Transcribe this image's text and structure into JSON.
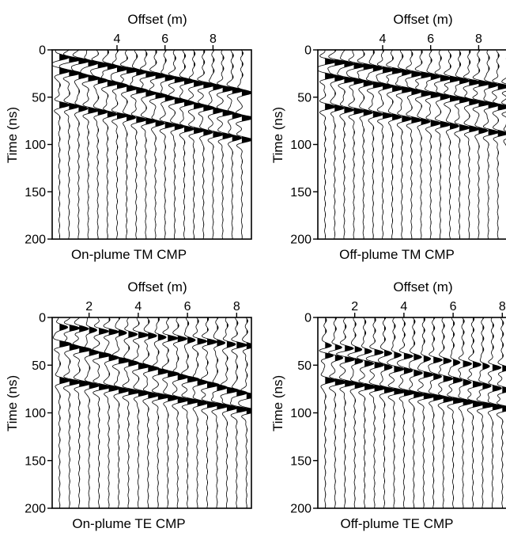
{
  "chart_data": [
    {
      "type": "wiggle-trace",
      "title": "On-plume TM CMP",
      "xlabel": "Offset (m)",
      "ylabel": "Time (ns)",
      "xticks": [
        4,
        6,
        8
      ],
      "xticklabels": [
        "4",
        "6",
        "8"
      ],
      "yticks": [
        0,
        50,
        100,
        150,
        200
      ],
      "yticklabels": [
        "0",
        "50",
        "100",
        "150",
        "200"
      ],
      "xlim": [
        1.3,
        9.6
      ],
      "ylim": [
        0,
        200
      ],
      "trace_offsets_start": 1.6,
      "trace_offsets_step": 0.4,
      "trace_count": 20,
      "events": [
        {
          "t0": 8,
          "t1": 45,
          "amp": 1.0
        },
        {
          "t0": 22,
          "t1": 72,
          "amp": 1.0
        },
        {
          "t0": 58,
          "t1": 95,
          "amp": 0.9
        }
      ]
    },
    {
      "type": "wiggle-trace",
      "title": "Off-plume TM CMP",
      "xlabel": "Offset (m)",
      "ylabel": "Time (ns)",
      "xticks": [
        4,
        6,
        8
      ],
      "xticklabels": [
        "4",
        "6",
        "8"
      ],
      "yticks": [
        0,
        50,
        100,
        150,
        200
      ],
      "yticklabels": [
        "0",
        "50",
        "100",
        "150",
        "200"
      ],
      "xlim": [
        1.3,
        9.6
      ],
      "ylim": [
        0,
        200
      ],
      "trace_offsets_start": 1.6,
      "trace_offsets_step": 0.4,
      "trace_count": 20,
      "events": [
        {
          "t0": 12,
          "t1": 40,
          "amp": 1.0
        },
        {
          "t0": 28,
          "t1": 62,
          "amp": 1.0
        },
        {
          "t0": 60,
          "t1": 90,
          "amp": 0.9
        }
      ]
    },
    {
      "type": "wiggle-trace",
      "title": "On-plume TE CMP",
      "xlabel": "Offset (m)",
      "ylabel": "Time (ns)",
      "xticks": [
        2,
        4,
        6,
        8
      ],
      "xticklabels": [
        "2",
        "4",
        "6",
        "8"
      ],
      "yticks": [
        0,
        50,
        100,
        150,
        200
      ],
      "yticklabels": [
        "0",
        "50",
        "100",
        "150",
        "200"
      ],
      "xlim": [
        0.5,
        8.6
      ],
      "ylim": [
        0,
        200
      ],
      "trace_offsets_start": 0.8,
      "trace_offsets_step": 0.4,
      "trace_count": 20,
      "events": [
        {
          "t0": 10,
          "t1": 30,
          "amp": 0.8
        },
        {
          "t0": 28,
          "t1": 82,
          "amp": 1.0
        },
        {
          "t0": 66,
          "t1": 98,
          "amp": 1.0
        }
      ]
    },
    {
      "type": "wiggle-trace",
      "title": "Off-plume TE CMP",
      "xlabel": "Offset (m)",
      "ylabel": "Time (ns)",
      "xticks": [
        2,
        4,
        6,
        8
      ],
      "xticklabels": [
        "2",
        "4",
        "6",
        "8"
      ],
      "yticks": [
        0,
        50,
        100,
        150,
        200
      ],
      "yticklabels": [
        "0",
        "50",
        "100",
        "150",
        "200"
      ],
      "xlim": [
        0.5,
        8.6
      ],
      "ylim": [
        0,
        200
      ],
      "trace_offsets_start": 0.8,
      "trace_offsets_step": 0.4,
      "trace_count": 20,
      "events": [
        {
          "t0": 30,
          "t1": 55,
          "amp": 0.7
        },
        {
          "t0": 40,
          "t1": 78,
          "amp": 0.8
        },
        {
          "t0": 66,
          "t1": 97,
          "amp": 1.0
        }
      ]
    }
  ]
}
